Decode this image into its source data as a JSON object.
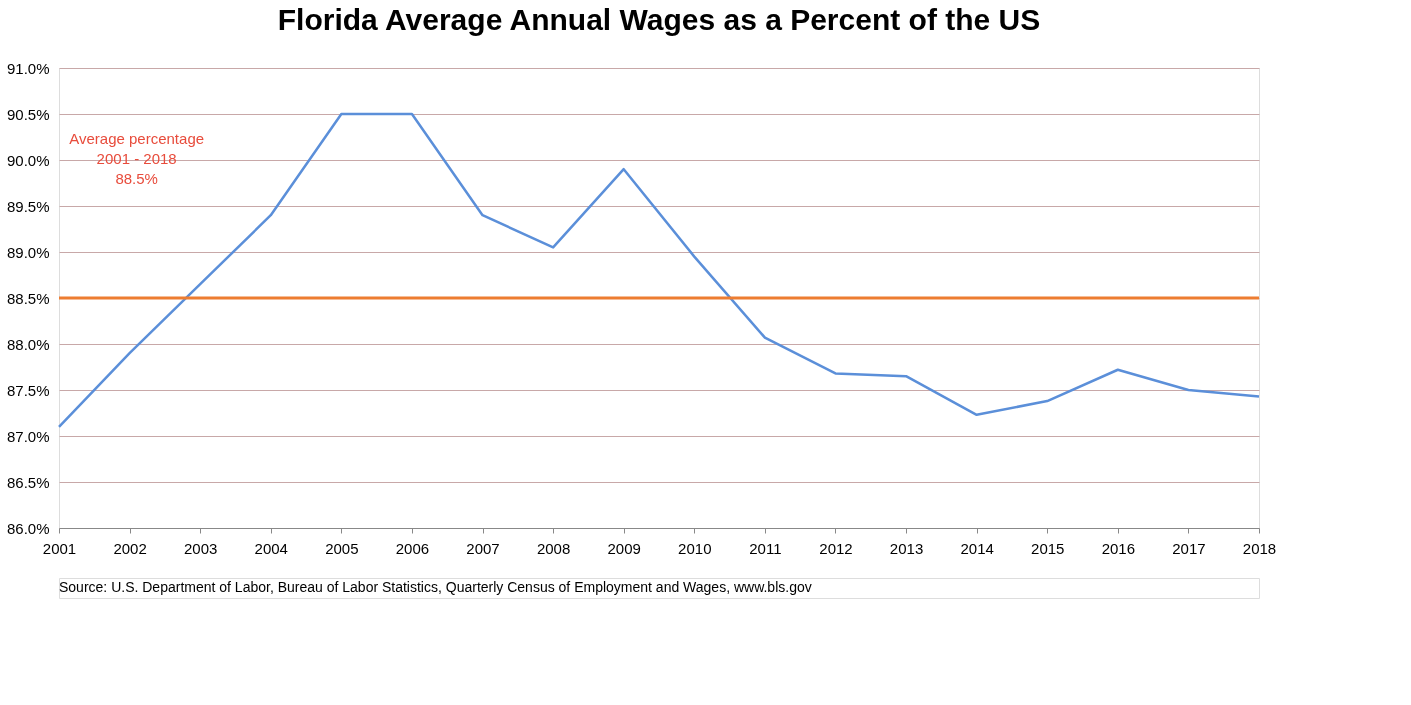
{
  "chart_data": {
    "type": "line",
    "title": "Florida Average Annual Wages as a Percent of the US",
    "categories": [
      "2001",
      "2002",
      "2003",
      "2004",
      "2005",
      "2006",
      "2007",
      "2008",
      "2009",
      "2010",
      "2011",
      "2012",
      "2013",
      "2014",
      "2015",
      "2016",
      "2017",
      "2018"
    ],
    "series": [
      {
        "color": "#5b8fd9",
        "values": [
          87.1,
          87.9,
          88.65,
          89.4,
          90.5,
          90.5,
          89.4,
          89.05,
          89.9,
          88.95,
          88.07,
          87.68,
          87.65,
          87.23,
          87.38,
          87.72,
          87.5,
          87.43
        ]
      }
    ],
    "ylim": [
      86.0,
      91.0
    ],
    "yticks": [
      {
        "value": 86.0,
        "label": "86.0%"
      },
      {
        "value": 86.5,
        "label": "86.5%"
      },
      {
        "value": 87.0,
        "label": "87.0%"
      },
      {
        "value": 87.5,
        "label": "87.5%"
      },
      {
        "value": 88.0,
        "label": "88.0%"
      },
      {
        "value": 88.5,
        "label": "88.5%"
      },
      {
        "value": 89.0,
        "label": "89.0%"
      },
      {
        "value": 89.5,
        "label": "89.5%"
      },
      {
        "value": 90.0,
        "label": "90.0%"
      },
      {
        "value": 90.5,
        "label": "90.5%"
      },
      {
        "value": 91.0,
        "label": "91.0%"
      }
    ],
    "ref_lines": [
      {
        "axis": "y",
        "value": 88.5,
        "color": "#ed7d31"
      }
    ],
    "annotations": [
      "Average percentage\n2001 - 2018\n88.5%",
      "Source:  U.S. Department of Labor, Bureau of Labor Statistics, Quarterly Census of Employment and Wages, www.bls.gov"
    ],
    "grid": "y",
    "marker": "none",
    "line_style": "solid"
  }
}
